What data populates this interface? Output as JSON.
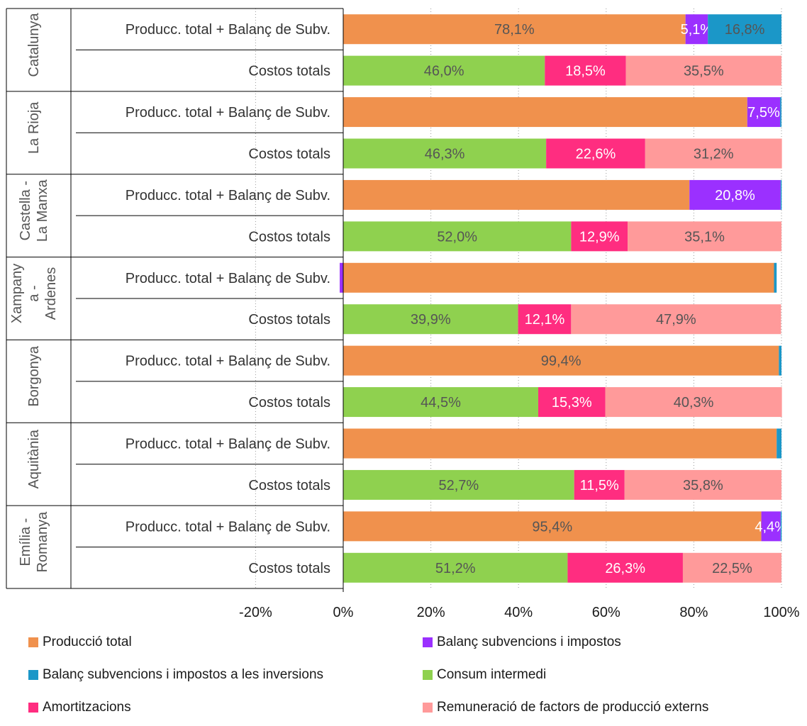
{
  "chart_data": {
    "type": "bar",
    "orientation": "horizontal",
    "stacked": true,
    "xlim": [
      -20,
      100
    ],
    "x_ticks": [
      "-20%",
      "0%",
      "20%",
      "40%",
      "60%",
      "80%",
      "100%"
    ],
    "x_tick_values": [
      -20,
      0,
      20,
      40,
      60,
      80,
      100
    ],
    "grid": "vertical dotted",
    "legend_position": "bottom",
    "groups": [
      {
        "region": [
          "Catalunya"
        ],
        "rows": [
          {
            "label": "Producc. total + Balanç de Subv.",
            "values": [
              78.1,
              5.1,
              16.8,
              0,
              0,
              0
            ],
            "labels": [
              "78,1%",
              "5,1%",
              "16,8%",
              "",
              "",
              ""
            ]
          },
          {
            "label": "Costos totals",
            "values": [
              0,
              0,
              0,
              46.0,
              18.5,
              35.5
            ],
            "labels": [
              "",
              "",
              "",
              "46,0%",
              "18,5%",
              "35,5%"
            ]
          }
        ]
      },
      {
        "region": [
          "La Rioja"
        ],
        "rows": [
          {
            "label": "Producc. total + Balanç de Subv.",
            "values": [
              92.2,
              7.5,
              0.3,
              0,
              0,
              0
            ],
            "labels": [
              "",
              "7,5%",
              "",
              "",
              "",
              ""
            ]
          },
          {
            "label": "Costos totals",
            "values": [
              0,
              0,
              0,
              46.3,
              22.6,
              31.2
            ],
            "labels": [
              "",
              "",
              "",
              "46,3%",
              "22,6%",
              "31,2%"
            ]
          }
        ]
      },
      {
        "region": [
          "Castella -",
          "La Manxa"
        ],
        "rows": [
          {
            "label": "Producc. total + Balanç de Subv.",
            "values": [
              79.0,
              20.8,
              0.2,
              0,
              0,
              0
            ],
            "labels": [
              "",
              "20,8%",
              "",
              "",
              "",
              ""
            ]
          },
          {
            "label": "Costos totals",
            "values": [
              0,
              0,
              0,
              52.0,
              12.9,
              35.1
            ],
            "labels": [
              "",
              "",
              "",
              "52,0%",
              "12,9%",
              "35,1%"
            ]
          }
        ]
      },
      {
        "region": [
          "Xampany",
          "a -",
          "Ardenes"
        ],
        "rows": [
          {
            "label": "Producc. total + Balanç de Subv.",
            "values": [
              98.3,
              -0.8,
              0.6,
              0,
              0,
              0
            ],
            "labels": [
              "",
              "",
              "",
              "",
              "",
              ""
            ]
          },
          {
            "label": "Costos totals",
            "values": [
              0,
              0,
              0,
              39.9,
              12.1,
              47.9
            ],
            "labels": [
              "",
              "",
              "",
              "39,9%",
              "12,1%",
              "47,9%"
            ]
          }
        ]
      },
      {
        "region": [
          "Borgonya"
        ],
        "rows": [
          {
            "label": "Producc. total + Balanç de Subv.",
            "values": [
              99.4,
              0,
              0.6,
              0,
              0,
              0
            ],
            "labels": [
              "99,4%",
              "",
              "",
              "",
              "",
              ""
            ]
          },
          {
            "label": "Costos totals",
            "values": [
              0,
              0,
              0,
              44.5,
              15.3,
              40.3
            ],
            "labels": [
              "",
              "",
              "",
              "44,5%",
              "15,3%",
              "40,3%"
            ]
          }
        ]
      },
      {
        "region": [
          "Aquitània"
        ],
        "rows": [
          {
            "label": "Producc. total + Balanç de Subv.",
            "values": [
              98.9,
              0,
              1.1,
              0,
              0,
              0
            ],
            "labels": [
              "",
              "",
              "",
              "",
              "",
              ""
            ]
          },
          {
            "label": "Costos totals",
            "values": [
              0,
              0,
              0,
              52.7,
              11.5,
              35.8
            ],
            "labels": [
              "",
              "",
              "",
              "52,7%",
              "11,5%",
              "35,8%"
            ]
          }
        ]
      },
      {
        "region": [
          "Emília -",
          "Romanya"
        ],
        "rows": [
          {
            "label": "Producc. total + Balanç de Subv.",
            "values": [
              95.4,
              4.4,
              0.2,
              0,
              0,
              0
            ],
            "labels": [
              "95,4%",
              "4,4%",
              "",
              "",
              "",
              ""
            ]
          },
          {
            "label": "Costos totals",
            "values": [
              0,
              0,
              0,
              51.2,
              26.3,
              22.5
            ],
            "labels": [
              "",
              "",
              "",
              "51,2%",
              "26,3%",
              "22,5%"
            ]
          }
        ]
      }
    ],
    "series": [
      {
        "name": "Producció total",
        "color": "#f0914d",
        "label_color": "#555555"
      },
      {
        "name": "Balanç subvencions i impostos",
        "color": "#9b30ff",
        "label_color": "#ffffff"
      },
      {
        "name": "Balanç subvencions i impostos a les inversions",
        "color": "#1b97c8",
        "label_color": "#555555"
      },
      {
        "name": "Consum intermedi",
        "color": "#8fd14f",
        "label_color": "#555555"
      },
      {
        "name": "Amortitzacions",
        "color": "#ff2d80",
        "label_color": "#ffffff"
      },
      {
        "name": "Remuneració de factors de producció externs",
        "color": "#ff9a9a",
        "label_color": "#555555"
      }
    ]
  }
}
